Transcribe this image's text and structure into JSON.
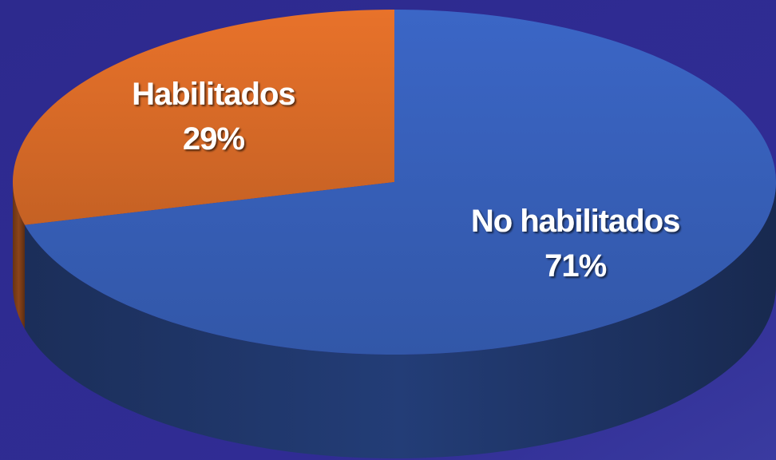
{
  "chart_data": {
    "type": "pie",
    "categories": [
      "Habilitados",
      "No habilitados"
    ],
    "values": [
      29,
      71
    ],
    "value_labels": [
      "29%",
      "71%"
    ],
    "colors": [
      "#e8722a",
      "#3b66c6"
    ]
  }
}
